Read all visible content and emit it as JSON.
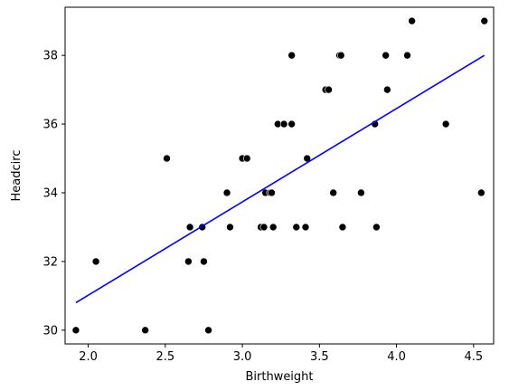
{
  "chart_data": {
    "type": "scatter",
    "title": "",
    "xlabel": "Birthweight",
    "ylabel": "Headcirc",
    "xlim": [
      1.85,
      4.63
    ],
    "ylim": [
      29.6,
      39.4
    ],
    "xticks": [
      2.0,
      2.5,
      3.0,
      3.5,
      4.0,
      4.5
    ],
    "xtick_labels": [
      "2.0",
      "2.5",
      "3.0",
      "3.5",
      "4.0",
      "4.5"
    ],
    "yticks": [
      30,
      32,
      34,
      36,
      38
    ],
    "ytick_labels": [
      "30",
      "32",
      "34",
      "36",
      "38"
    ],
    "grid": false,
    "legend": "none",
    "point_color": "#000000",
    "line_color": "#0000ff",
    "points": [
      {
        "x": 1.92,
        "y": 30
      },
      {
        "x": 2.05,
        "y": 32
      },
      {
        "x": 2.37,
        "y": 30
      },
      {
        "x": 2.51,
        "y": 35
      },
      {
        "x": 2.65,
        "y": 32
      },
      {
        "x": 2.66,
        "y": 33
      },
      {
        "x": 2.74,
        "y": 33
      },
      {
        "x": 2.75,
        "y": 32
      },
      {
        "x": 2.78,
        "y": 30
      },
      {
        "x": 2.9,
        "y": 34
      },
      {
        "x": 2.92,
        "y": 33
      },
      {
        "x": 3.0,
        "y": 35
      },
      {
        "x": 3.03,
        "y": 35
      },
      {
        "x": 3.12,
        "y": 33
      },
      {
        "x": 3.14,
        "y": 33
      },
      {
        "x": 3.15,
        "y": 34
      },
      {
        "x": 3.18,
        "y": 34
      },
      {
        "x": 3.19,
        "y": 34
      },
      {
        "x": 3.2,
        "y": 33
      },
      {
        "x": 3.23,
        "y": 36
      },
      {
        "x": 3.27,
        "y": 36
      },
      {
        "x": 3.32,
        "y": 36
      },
      {
        "x": 3.32,
        "y": 38
      },
      {
        "x": 3.35,
        "y": 33
      },
      {
        "x": 3.41,
        "y": 33
      },
      {
        "x": 3.42,
        "y": 35
      },
      {
        "x": 3.54,
        "y": 37
      },
      {
        "x": 3.56,
        "y": 37
      },
      {
        "x": 3.59,
        "y": 34
      },
      {
        "x": 3.63,
        "y": 38
      },
      {
        "x": 3.64,
        "y": 38
      },
      {
        "x": 3.65,
        "y": 33
      },
      {
        "x": 3.77,
        "y": 34
      },
      {
        "x": 3.86,
        "y": 36
      },
      {
        "x": 3.87,
        "y": 33
      },
      {
        "x": 3.93,
        "y": 38
      },
      {
        "x": 3.94,
        "y": 37
      },
      {
        "x": 4.07,
        "y": 38
      },
      {
        "x": 4.1,
        "y": 39
      },
      {
        "x": 4.32,
        "y": 36
      },
      {
        "x": 4.55,
        "y": 34
      },
      {
        "x": 4.57,
        "y": 39
      }
    ],
    "regression_line": {
      "x": [
        1.92,
        4.57
      ],
      "y": [
        30.8,
        38.0
      ]
    }
  }
}
